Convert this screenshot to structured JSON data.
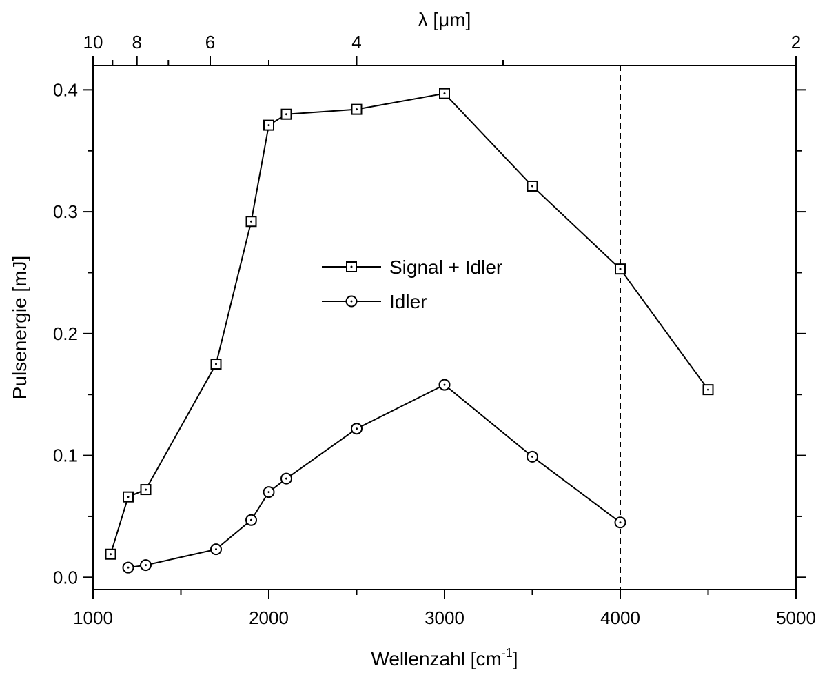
{
  "chart_data": {
    "type": "line",
    "title": "",
    "xlabel_main": "Wellenzahl [cm",
    "xlabel_sup": "-1",
    "xlabel_end": "]",
    "xlabel_top": "λ [μm]",
    "ylabel": "Pulsenergie [mJ]",
    "xlim": [
      1000,
      5000
    ],
    "ylim": [
      -0.01,
      0.42
    ],
    "x_ticks": [
      "1000",
      "2000",
      "3000",
      "4000",
      "5000"
    ],
    "y_ticks": [
      "0.0",
      "0.1",
      "0.2",
      "0.3",
      "0.4"
    ],
    "top_ticks": [
      "10",
      "8",
      "6",
      "4",
      "2"
    ],
    "grid": false,
    "legend_position": "center",
    "reference_line_x": 4000,
    "series": [
      {
        "name": "Signal + Idler",
        "marker": "square",
        "x": [
          1100,
          1200,
          1300,
          1700,
          1900,
          2000,
          2100,
          2500,
          3000,
          3500,
          4000,
          4500
        ],
        "y": [
          0.019,
          0.066,
          0.072,
          0.175,
          0.292,
          0.371,
          0.38,
          0.384,
          0.397,
          0.321,
          0.253,
          0.154
        ]
      },
      {
        "name": "Idler",
        "marker": "circle",
        "x": [
          1200,
          1300,
          1700,
          1900,
          2000,
          2100,
          2500,
          3000,
          3500,
          4000
        ],
        "y": [
          0.008,
          0.01,
          0.023,
          0.047,
          0.07,
          0.081,
          0.122,
          0.158,
          0.099,
          0.045
        ]
      }
    ]
  }
}
